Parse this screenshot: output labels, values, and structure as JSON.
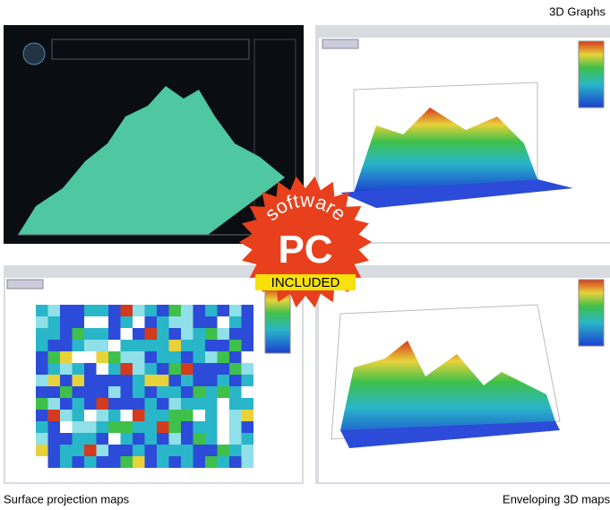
{
  "header": {
    "title": "3D Graphs"
  },
  "badge": {
    "top_text": "software",
    "main_text": "PC",
    "bottom_text": "INCLUDED"
  },
  "captions": {
    "left": "Surface projection maps",
    "right": "Enveloping 3D maps"
  }
}
